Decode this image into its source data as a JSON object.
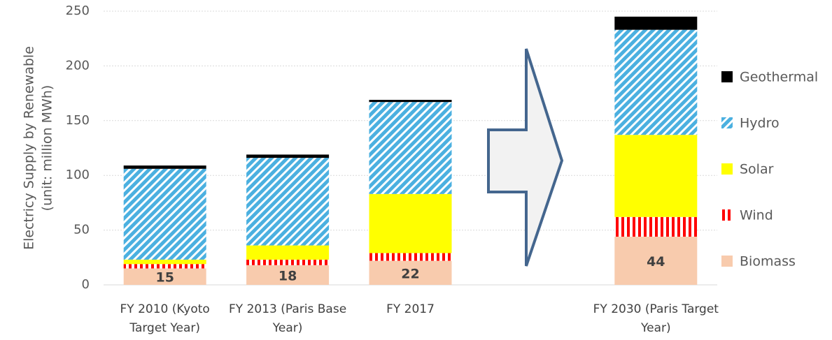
{
  "chart_data": {
    "type": "stacked_bar",
    "y_label": [
      "Electricy Supply by Renewable",
      "(unit: million MWh)"
    ],
    "categories": [
      "FY 2010 (Kyoto Target Year)",
      "FY 2013 (Paris Base Year)",
      "FY 2017",
      null,
      "FY 2030 (Paris Target Year)"
    ],
    "series": [
      {
        "name": "Biomass",
        "color": "#f8cbad",
        "values": [
          15,
          18,
          22,
          null,
          44
        ],
        "data_labels": true
      },
      {
        "name": "Wind",
        "color": "#ff0000",
        "pattern": "vertical",
        "values": [
          4,
          5,
          7,
          null,
          18
        ]
      },
      {
        "name": "Solar",
        "color": "#ffff00",
        "values": [
          4,
          13,
          54,
          null,
          75
        ]
      },
      {
        "name": "Hydro",
        "color": "#4bb0e0",
        "pattern": "diagonal",
        "values": [
          83,
          80,
          84,
          null,
          96
        ]
      },
      {
        "name": "Geothermal",
        "color": "#000000",
        "values": [
          3,
          3,
          2,
          null,
          12
        ]
      }
    ],
    "ylim": [
      0,
      250
    ],
    "yticks": [
      0,
      50,
      100,
      150,
      200,
      250
    ],
    "grid": true,
    "legend": "right"
  }
}
